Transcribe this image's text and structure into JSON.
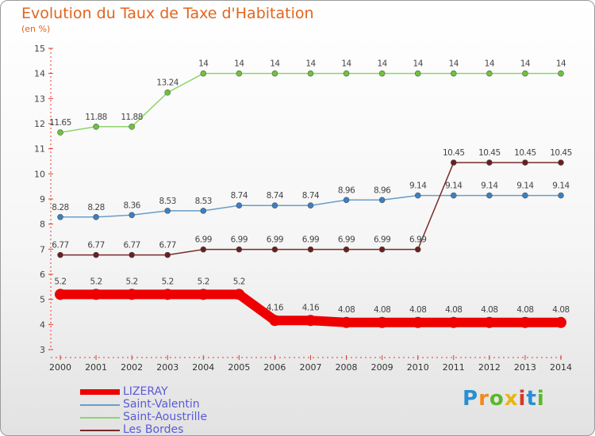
{
  "header": {
    "title": "Evolution du Taux de Taxe d'Habitation",
    "subtitle": "(en %)"
  },
  "brand": {
    "text": "Proxiti",
    "letters": [
      "P",
      "r",
      "o",
      "x",
      "i",
      "t",
      "i"
    ],
    "letter_colors": [
      "#2a8fd2",
      "#f08a1c",
      "#5cb82a",
      "#e8b513",
      "#d23a2a",
      "#2a8fd2",
      "#5cb82a"
    ]
  },
  "chart_data": {
    "type": "line",
    "title": "Evolution du Taux de Taxe d'Habitation",
    "ylabel": "(en %)",
    "xlabel": "",
    "x": [
      "2000",
      "2001",
      "2002",
      "2003",
      "2004",
      "2005",
      "2006",
      "2007",
      "2008",
      "2009",
      "2010",
      "2011",
      "2012",
      "2013",
      "2014"
    ],
    "ylim": [
      3,
      15
    ],
    "yticks": [
      3,
      4,
      5,
      6,
      7,
      8,
      9,
      10,
      11,
      12,
      13,
      14,
      15
    ],
    "grid": false,
    "legend_position": "bottom-left",
    "series": [
      {
        "name": "LIZERAY",
        "color": "#ee0000",
        "values": [
          5.2,
          5.2,
          5.2,
          5.2,
          5.2,
          5.2,
          4.16,
          4.16,
          4.08,
          4.08,
          4.08,
          4.08,
          4.08,
          4.08,
          4.08
        ],
        "labels": [
          "5.2",
          "5.2",
          "5.2",
          "5.2",
          "5.2",
          "5.2",
          "4.16",
          "4.16",
          "4.08",
          "4.08",
          "4.08",
          "4.08",
          "4.08",
          "4.08",
          "4.08"
        ]
      },
      {
        "name": "Saint-Valentin",
        "color": "#6a9dc8",
        "marker_color": "#3b7fc4",
        "values": [
          8.28,
          8.28,
          8.36,
          8.53,
          8.53,
          8.74,
          8.74,
          8.74,
          8.96,
          8.96,
          9.14,
          9.14,
          9.14,
          9.14,
          9.14
        ],
        "labels": [
          "8.28",
          "8.28",
          "8.36",
          "8.53",
          "8.53",
          "8.74",
          "8.74",
          "8.74",
          "8.96",
          "8.96",
          "9.14",
          "9.14",
          "9.14",
          "9.14",
          "9.14"
        ]
      },
      {
        "name": "Saint-Aoustrille",
        "color": "#8ed46a",
        "marker_color": "#6cc43a",
        "values": [
          11.65,
          11.88,
          11.88,
          13.24,
          14,
          14,
          14,
          14,
          14,
          14,
          14,
          14,
          14,
          14,
          14
        ],
        "labels": [
          "11.65",
          "11.88",
          "11.88",
          "13.24",
          "14",
          "14",
          "14",
          "14",
          "14",
          "14",
          "14",
          "14",
          "14",
          "14",
          "14"
        ]
      },
      {
        "name": "Les Bordes",
        "color": "#7a2a2a",
        "marker_color": "#6a1e1e",
        "values": [
          6.77,
          6.77,
          6.77,
          6.77,
          6.99,
          6.99,
          6.99,
          6.99,
          6.99,
          6.99,
          6.99,
          10.45,
          10.45,
          10.45,
          10.45
        ],
        "labels": [
          "6.77",
          "6.77",
          "6.77",
          "6.77",
          "6.99",
          "6.99",
          "6.99",
          "6.99",
          "6.99",
          "6.99",
          "6.99",
          "10.45",
          "10.45",
          "10.45",
          "10.45"
        ]
      }
    ]
  }
}
